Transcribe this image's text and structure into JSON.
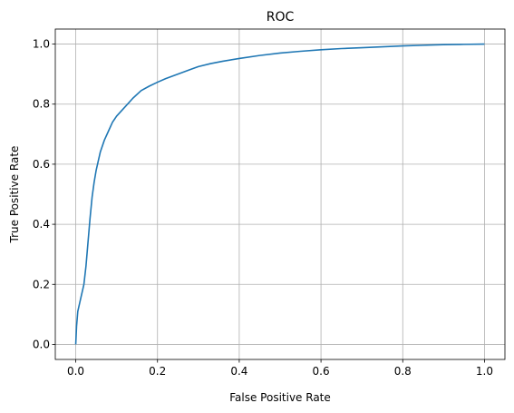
{
  "chart_data": {
    "type": "line",
    "title": "ROC",
    "xlabel": "False Positive Rate",
    "ylabel": "True Positive Rate",
    "xlim": [
      -0.05,
      1.05
    ],
    "ylim": [
      -0.05,
      1.05
    ],
    "xticks": [
      0.0,
      0.2,
      0.4,
      0.6,
      0.8,
      1.0
    ],
    "yticks": [
      0.0,
      0.2,
      0.4,
      0.6,
      0.8,
      1.0
    ],
    "xtick_labels": [
      "0.0",
      "0.2",
      "0.4",
      "0.6",
      "0.8",
      "1.0"
    ],
    "ytick_labels": [
      "0.0",
      "0.2",
      "0.4",
      "0.6",
      "0.8",
      "1.0"
    ],
    "grid": true,
    "series": [
      {
        "color": "#1f77b4",
        "x": [
          0.0,
          0.002,
          0.005,
          0.01,
          0.015,
          0.02,
          0.025,
          0.03,
          0.035,
          0.04,
          0.045,
          0.05,
          0.055,
          0.06,
          0.07,
          0.08,
          0.09,
          0.1,
          0.12,
          0.14,
          0.16,
          0.18,
          0.2,
          0.22,
          0.25,
          0.28,
          0.3,
          0.33,
          0.36,
          0.4,
          0.45,
          0.5,
          0.55,
          0.6,
          0.65,
          0.7,
          0.75,
          0.8,
          0.85,
          0.9,
          0.95,
          1.0
        ],
        "y": [
          0.0,
          0.06,
          0.11,
          0.14,
          0.17,
          0.2,
          0.26,
          0.34,
          0.42,
          0.49,
          0.54,
          0.58,
          0.61,
          0.64,
          0.68,
          0.71,
          0.74,
          0.76,
          0.79,
          0.82,
          0.845,
          0.86,
          0.873,
          0.885,
          0.9,
          0.915,
          0.925,
          0.935,
          0.943,
          0.952,
          0.962,
          0.97,
          0.976,
          0.981,
          0.985,
          0.988,
          0.991,
          0.994,
          0.996,
          0.998,
          0.999,
          1.0
        ]
      }
    ]
  }
}
